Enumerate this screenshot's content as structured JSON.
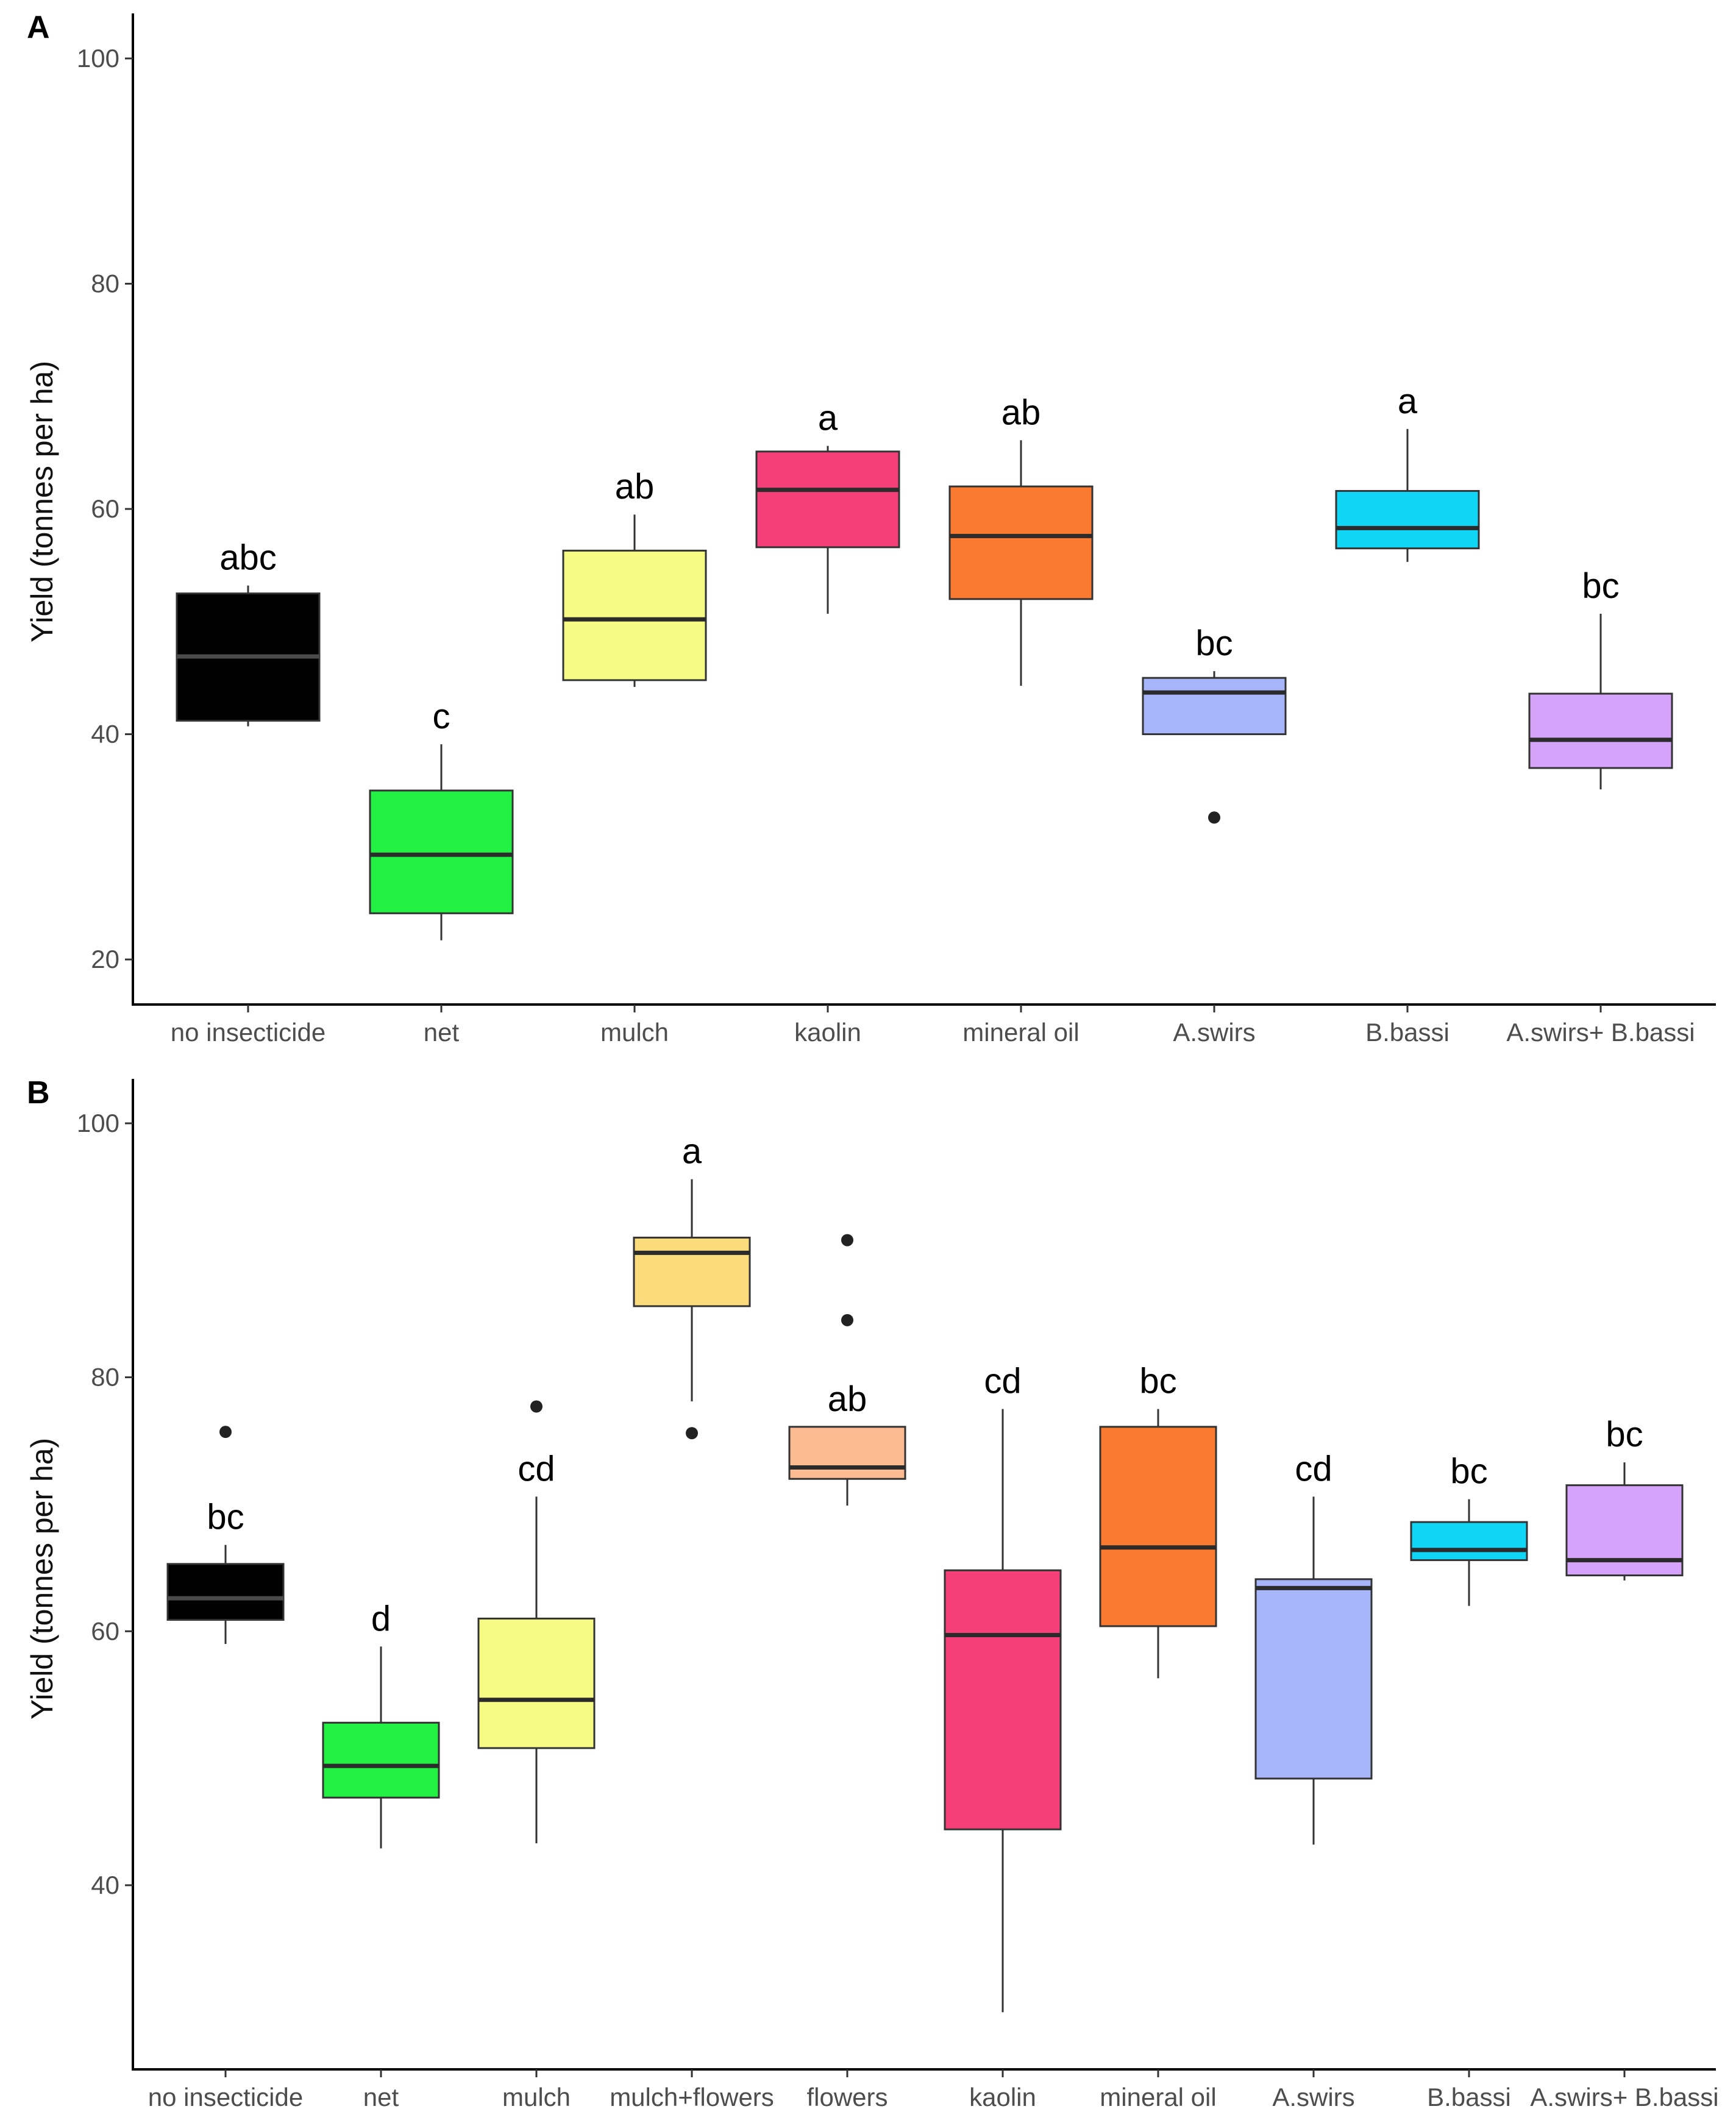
{
  "chart_data": [
    {
      "panel_label": "A",
      "type": "box",
      "ylabel": "Yield (tonnes per ha)",
      "xlabel": "",
      "ylim": [
        16,
        104
      ],
      "yticks": [
        20,
        40,
        60,
        80,
        100
      ],
      "boxes": [
        {
          "label": "no insecticide",
          "color": "#000000",
          "median_color": "#4a4a4a",
          "q1": 41.2,
          "median": 46.9,
          "q3": 52.5,
          "whisker_low": 40.7,
          "whisker_high": 53.2,
          "outliers": [],
          "sig": "abc"
        },
        {
          "label": "net",
          "color": "#22f043",
          "q1": 24.1,
          "median": 29.3,
          "q3": 35.0,
          "whisker_low": 21.7,
          "whisker_high": 39.1,
          "outliers": [],
          "sig": "c"
        },
        {
          "label": "mulch",
          "color": "#f6fb84",
          "q1": 44.8,
          "median": 50.2,
          "q3": 56.3,
          "whisker_low": 44.2,
          "whisker_high": 59.5,
          "outliers": [],
          "sig": "ab"
        },
        {
          "label": "kaolin",
          "color": "#f43f7a",
          "q1": 56.6,
          "median": 61.7,
          "q3": 65.1,
          "whisker_low": 50.7,
          "whisker_high": 65.6,
          "outliers": [],
          "sig": "a"
        },
        {
          "label": "mineral oil",
          "color": "#fa7a2f",
          "q1": 52.0,
          "median": 57.6,
          "q3": 62.0,
          "whisker_low": 44.3,
          "whisker_high": 66.1,
          "outliers": [],
          "sig": "ab"
        },
        {
          "label": "A.swirs",
          "color": "#a7b6fa",
          "q1": 40.0,
          "median": 43.7,
          "q3": 45.0,
          "whisker_low": 40.0,
          "whisker_high": 45.6,
          "outliers": [
            32.6
          ],
          "sig": "bc"
        },
        {
          "label": "B.bassi",
          "color": "#10d5f4",
          "q1": 56.5,
          "median": 58.3,
          "q3": 61.6,
          "whisker_low": 55.3,
          "whisker_high": 67.1,
          "outliers": [],
          "sig": "a"
        },
        {
          "label": "A.swirs+ B.bassi",
          "color": "#d6a3fa",
          "q1": 37.0,
          "median": 39.5,
          "q3": 43.6,
          "whisker_low": 35.1,
          "whisker_high": 50.7,
          "outliers": [],
          "sig": "bc"
        }
      ]
    },
    {
      "panel_label": "B",
      "type": "box",
      "ylabel": "Yield (tonnes per ha)",
      "xlabel": "",
      "ylim": [
        25.5,
        103.5
      ],
      "yticks": [
        40,
        60,
        80,
        100
      ],
      "boxes": [
        {
          "label": "no insecticide",
          "color": "#000000",
          "median_color": "#4a4a4a",
          "q1": 60.9,
          "median": 62.6,
          "q3": 65.3,
          "whisker_low": 59.0,
          "whisker_high": 66.8,
          "outliers": [
            75.7
          ],
          "sig": "bc"
        },
        {
          "label": "net",
          "color": "#22f043",
          "q1": 46.9,
          "median": 49.4,
          "q3": 52.8,
          "whisker_low": 42.9,
          "whisker_high": 58.8,
          "outliers": [],
          "sig": "d"
        },
        {
          "label": "mulch",
          "color": "#f6fb84",
          "q1": 50.8,
          "median": 54.6,
          "q3": 61.0,
          "whisker_low": 43.3,
          "whisker_high": 70.6,
          "outliers": [
            77.7
          ],
          "sig": "cd"
        },
        {
          "label": "mulch+flowers",
          "color": "#fbdb7c",
          "q1": 85.6,
          "median": 89.8,
          "q3": 91.0,
          "whisker_low": 78.1,
          "whisker_high": 95.6,
          "outliers": [
            75.6
          ],
          "sig": "a"
        },
        {
          "label": "flowers",
          "color": "#fdbb91",
          "q1": 72.0,
          "median": 72.9,
          "q3": 76.1,
          "whisker_low": 69.9,
          "whisker_high": 76.1,
          "outliers": [
            84.5,
            90.8
          ],
          "sig": "ab"
        },
        {
          "label": "kaolin",
          "color": "#f43f7a",
          "q1": 44.4,
          "median": 59.7,
          "q3": 64.8,
          "whisker_low": 30.0,
          "whisker_high": 77.5,
          "outliers": [],
          "sig": "cd"
        },
        {
          "label": "mineral oil",
          "color": "#fa7a2f",
          "q1": 60.4,
          "median": 66.6,
          "q3": 76.1,
          "whisker_low": 56.3,
          "whisker_high": 77.5,
          "outliers": [],
          "sig": "bc"
        },
        {
          "label": "A.swirs",
          "color": "#a7b6fa",
          "q1": 48.4,
          "median": 63.4,
          "q3": 64.1,
          "whisker_low": 43.2,
          "whisker_high": 70.6,
          "outliers": [],
          "sig": "cd"
        },
        {
          "label": "B.bassi",
          "color": "#10d5f4",
          "q1": 65.6,
          "median": 66.4,
          "q3": 68.6,
          "whisker_low": 62.0,
          "whisker_high": 70.4,
          "outliers": [],
          "sig": "bc"
        },
        {
          "label": "A.swirs+ B.bassi",
          "color": "#d6a3fa",
          "q1": 64.4,
          "median": 65.6,
          "q3": 71.5,
          "whisker_low": 64.0,
          "whisker_high": 73.3,
          "outliers": [],
          "sig": "bc"
        }
      ]
    }
  ]
}
